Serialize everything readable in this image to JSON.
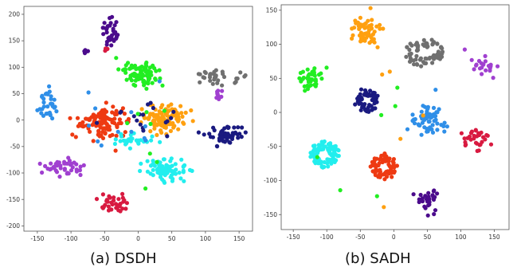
{
  "captions": {
    "a": "(a) DSDH",
    "b": "(b) SADH"
  },
  "colors": {
    "green": "#22ee22",
    "orange": "#ffa010",
    "gray": "#707070",
    "purple": "#a040d0",
    "blue": "#2f8fe8",
    "red": "#ee3a12",
    "cyan": "#22eeee",
    "navy": "#1a1a80",
    "crimson": "#d81a40",
    "indigo": "#4b0b8c"
  },
  "chart_data": [
    {
      "type": "scatter",
      "caption": "(a) DSDH",
      "xlim": [
        -170,
        170
      ],
      "ylim": [
        -210,
        215
      ],
      "xticks": [
        -150,
        -100,
        -50,
        0,
        50,
        100,
        150
      ],
      "yticks": [
        -200,
        -150,
        -100,
        -50,
        0,
        50,
        100,
        150,
        200
      ],
      "grid": false,
      "clusters": [
        {
          "color": "indigo",
          "shape": "ring",
          "cx": -42,
          "cy": 168,
          "rx": 12,
          "ry": 28,
          "n": 34,
          "seed": 1
        },
        {
          "color": "indigo",
          "shape": "blob",
          "cx": -78,
          "cy": 130,
          "rx": 6,
          "ry": 6,
          "n": 6,
          "seed": 2
        },
        {
          "color": "crimson",
          "shape": "blob",
          "cx": -48,
          "cy": 132,
          "rx": 4,
          "ry": 5,
          "n": 4,
          "seed": 3
        },
        {
          "color": "green",
          "shape": "blob",
          "cx": 5,
          "cy": 88,
          "rx": 30,
          "ry": 24,
          "n": 80,
          "seed": 4
        },
        {
          "color": "gray",
          "shape": "blob",
          "cx": 118,
          "cy": 82,
          "rx": 34,
          "ry": 16,
          "n": 34,
          "seed": 5
        },
        {
          "color": "purple",
          "shape": "blob",
          "cx": 118,
          "cy": 52,
          "rx": 6,
          "ry": 18,
          "n": 9,
          "seed": 6
        },
        {
          "color": "blue",
          "shape": "blob",
          "cx": -132,
          "cy": 30,
          "rx": 16,
          "ry": 26,
          "n": 32,
          "seed": 7
        },
        {
          "color": "red",
          "shape": "blob",
          "cx": -52,
          "cy": -5,
          "rx": 36,
          "ry": 30,
          "n": 120,
          "seed": 8
        },
        {
          "color": "orange",
          "shape": "blob",
          "cx": 40,
          "cy": 5,
          "rx": 36,
          "ry": 28,
          "n": 110,
          "seed": 9
        },
        {
          "color": "cyan",
          "shape": "blob",
          "cx": -2,
          "cy": -40,
          "rx": 38,
          "ry": 12,
          "n": 28,
          "seed": 10
        },
        {
          "color": "navy",
          "shape": "blob",
          "cx": 130,
          "cy": -30,
          "rx": 28,
          "ry": 18,
          "n": 60,
          "seed": 11
        },
        {
          "color": "cyan",
          "shape": "blob",
          "cx": 40,
          "cy": -92,
          "rx": 30,
          "ry": 20,
          "n": 85,
          "seed": 12
        },
        {
          "color": "purple",
          "shape": "blob",
          "cx": -112,
          "cy": -88,
          "rx": 28,
          "ry": 16,
          "n": 45,
          "seed": 13
        },
        {
          "color": "crimson",
          "shape": "blob",
          "cx": -32,
          "cy": -160,
          "rx": 26,
          "ry": 20,
          "n": 35,
          "seed": 14
        },
        {
          "color": "navy",
          "shape": "blob",
          "cx": 10,
          "cy": 15,
          "rx": 60,
          "ry": 45,
          "n": 18,
          "seed": 15
        },
        {
          "color": "blue",
          "shape": "blob",
          "cx": -30,
          "cy": 0,
          "rx": 80,
          "ry": 60,
          "n": 12,
          "seed": 16
        },
        {
          "color": "green",
          "shape": "blob",
          "cx": 20,
          "cy": -10,
          "rx": 90,
          "ry": 70,
          "n": 8,
          "seed": 17
        }
      ]
    },
    {
      "type": "scatter",
      "caption": "(b) SADH",
      "xlim": [
        -168,
        172
      ],
      "ylim": [
        -172,
        158
      ],
      "xticks": [
        -150,
        -100,
        -50,
        0,
        50,
        100,
        150
      ],
      "yticks": [
        -150,
        -100,
        -50,
        0,
        50,
        100,
        150
      ],
      "grid": false,
      "clusters": [
        {
          "color": "orange",
          "shape": "blob",
          "cx": -40,
          "cy": 120,
          "rx": 22,
          "ry": 22,
          "n": 55,
          "seed": 21
        },
        {
          "color": "gray",
          "shape": "ring",
          "cx": 45,
          "cy": 88,
          "rx": 28,
          "ry": 22,
          "n": 70,
          "seed": 22
        },
        {
          "color": "purple",
          "shape": "blob",
          "cx": 135,
          "cy": 68,
          "rx": 22,
          "ry": 18,
          "n": 22,
          "seed": 23
        },
        {
          "color": "green",
          "shape": "blob",
          "cx": -125,
          "cy": 50,
          "rx": 20,
          "ry": 20,
          "n": 40,
          "seed": 24
        },
        {
          "color": "navy",
          "shape": "ring",
          "cx": -40,
          "cy": 18,
          "rx": 20,
          "ry": 18,
          "n": 60,
          "seed": 25
        },
        {
          "color": "blue",
          "shape": "blob",
          "cx": 50,
          "cy": -10,
          "rx": 24,
          "ry": 26,
          "n": 65,
          "seed": 26
        },
        {
          "color": "crimson",
          "shape": "blob",
          "cx": 125,
          "cy": -38,
          "rx": 20,
          "ry": 14,
          "n": 30,
          "seed": 27
        },
        {
          "color": "cyan",
          "shape": "ring",
          "cx": -103,
          "cy": -62,
          "rx": 22,
          "ry": 20,
          "n": 90,
          "seed": 28
        },
        {
          "color": "red",
          "shape": "ring",
          "cx": -15,
          "cy": -80,
          "rx": 20,
          "ry": 20,
          "n": 70,
          "seed": 29
        },
        {
          "color": "indigo",
          "shape": "blob",
          "cx": 50,
          "cy": -128,
          "rx": 16,
          "ry": 22,
          "n": 30,
          "seed": 30
        },
        {
          "color": "green",
          "shape": "blob",
          "cx": -20,
          "cy": 0,
          "rx": 100,
          "ry": 90,
          "n": 6,
          "seed": 31
        },
        {
          "color": "orange",
          "shape": "blob",
          "cx": 0,
          "cy": 0,
          "rx": 100,
          "ry": 90,
          "n": 5,
          "seed": 32
        }
      ]
    }
  ]
}
